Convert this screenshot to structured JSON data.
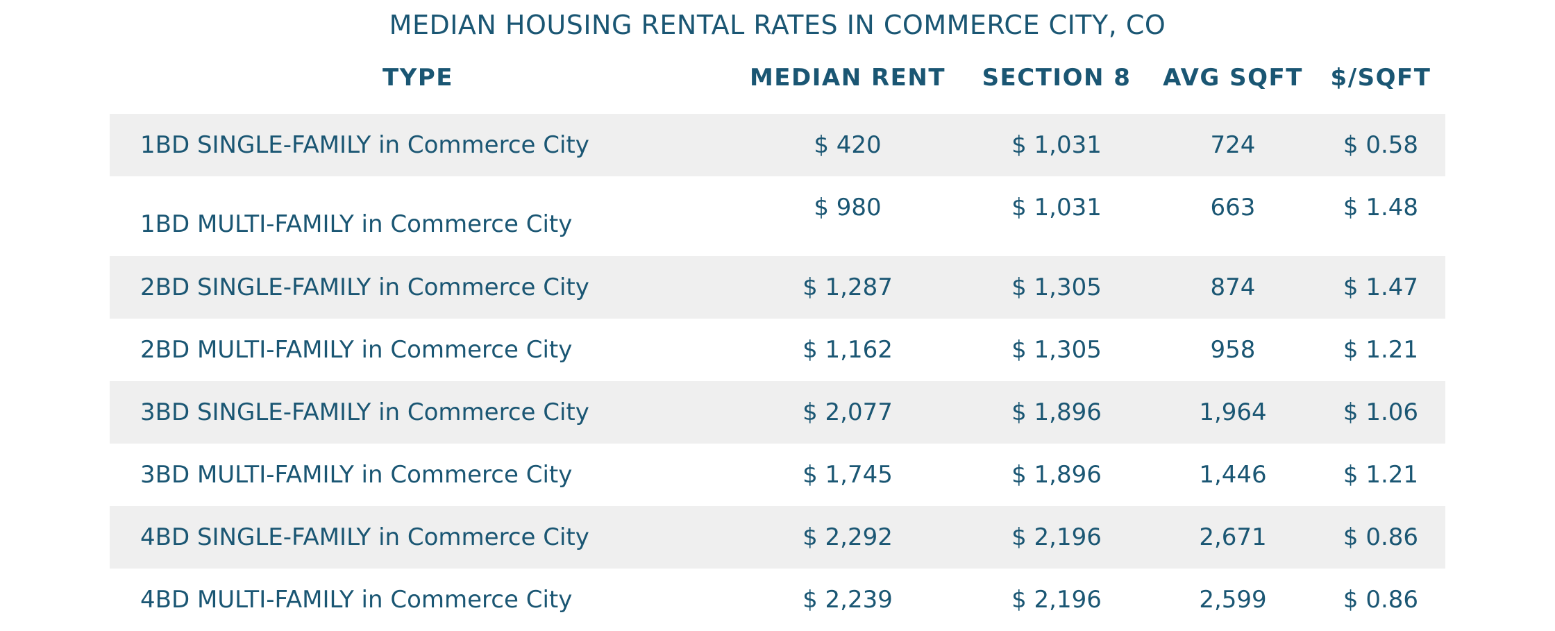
{
  "title": "MEDIAN HOUSING RENTAL RATES IN COMMERCE CITY, CO",
  "headers": {
    "type": "TYPE",
    "median_rent": "MEDIAN RENT",
    "section8": "SECTION 8",
    "avg_sqft": "AVG SQFT",
    "per_sqft": "$/SQFT"
  },
  "rows": [
    {
      "type": "1BD SINGLE-FAMILY in Commerce City",
      "median_rent": "$ 420",
      "section8": "$ 1,031",
      "avg_sqft": "724",
      "per_sqft": "$ 0.58"
    },
    {
      "type": "1BD MULTI-FAMILY in Commerce City",
      "median_rent": "$ 980",
      "section8": "$ 1,031",
      "avg_sqft": "663",
      "per_sqft": "$ 1.48"
    },
    {
      "type": "2BD SINGLE-FAMILY in Commerce City",
      "median_rent": "$ 1,287",
      "section8": "$ 1,305",
      "avg_sqft": "874",
      "per_sqft": "$ 1.47"
    },
    {
      "type": "2BD MULTI-FAMILY in Commerce City",
      "median_rent": "$ 1,162",
      "section8": "$ 1,305",
      "avg_sqft": "958",
      "per_sqft": "$ 1.21"
    },
    {
      "type": "3BD SINGLE-FAMILY in Commerce City",
      "median_rent": "$ 2,077",
      "section8": "$ 1,896",
      "avg_sqft": "1,964",
      "per_sqft": "$ 1.06"
    },
    {
      "type": "3BD MULTI-FAMILY in Commerce City",
      "median_rent": "$ 1,745",
      "section8": "$ 1,896",
      "avg_sqft": "1,446",
      "per_sqft": "$ 1.21"
    },
    {
      "type": "4BD SINGLE-FAMILY in Commerce City",
      "median_rent": "$ 2,292",
      "section8": "$ 2,196",
      "avg_sqft": "2,671",
      "per_sqft": "$ 0.86"
    },
    {
      "type": "4BD MULTI-FAMILY in Commerce City",
      "median_rent": "$ 2,239",
      "section8": "$ 2,196",
      "avg_sqft": "2,599",
      "per_sqft": "$ 0.86"
    }
  ],
  "colors": {
    "text": "#1a5673",
    "shaded_row": "#efefef",
    "background": "#ffffff"
  }
}
